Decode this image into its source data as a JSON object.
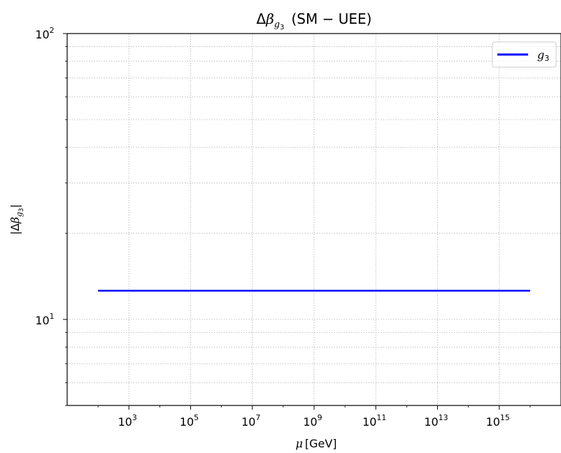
{
  "chart_data": {
    "type": "line",
    "title": {
      "delta": "Δ",
      "beta": "β",
      "sub_g": "g",
      "sub_3": "3",
      "rest": "(SM − UEE)"
    },
    "xlabel": {
      "mu": "μ",
      "unit": "[GeV]"
    },
    "ylabel": {
      "bar_l": "|",
      "delta": "Δ",
      "beta": "β",
      "sub_g": "g",
      "sub_3": "3",
      "bar_r": "|"
    },
    "x_scale": "log",
    "y_scale": "log",
    "xlim": [
      10,
      1e+17
    ],
    "ylim": [
      5,
      100
    ],
    "x_ticks": [
      {
        "value": 1000.0,
        "base": "10",
        "exp": "3"
      },
      {
        "value": 100000.0,
        "base": "10",
        "exp": "5"
      },
      {
        "value": 10000000.0,
        "base": "10",
        "exp": "7"
      },
      {
        "value": 1000000000.0,
        "base": "10",
        "exp": "9"
      },
      {
        "value": 100000000000.0,
        "base": "10",
        "exp": "11"
      },
      {
        "value": 10000000000000.0,
        "base": "10",
        "exp": "13"
      },
      {
        "value": 1000000000000000.0,
        "base": "10",
        "exp": "15"
      }
    ],
    "y_ticks": [
      {
        "value": 10,
        "base": "10",
        "exp": "1"
      },
      {
        "value": 100,
        "base": "10",
        "exp": "2"
      }
    ],
    "grid": true,
    "legend_position": "top-right",
    "series": [
      {
        "name": {
          "g": "g",
          "sub": "3"
        },
        "color": "#0000ff",
        "x": [
          100,
          1e+16
        ],
        "y": [
          12.6,
          12.6
        ]
      }
    ]
  }
}
